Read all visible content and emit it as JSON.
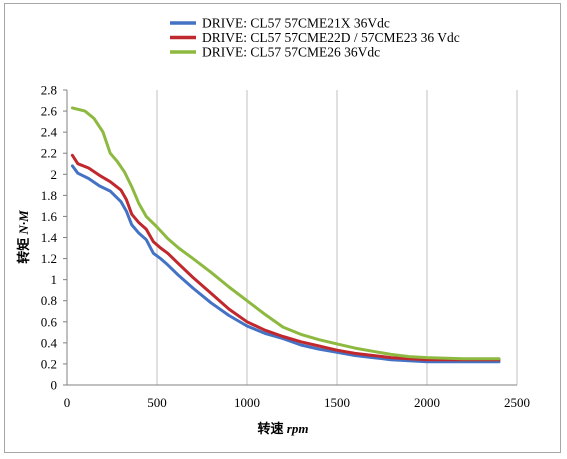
{
  "chart_data": {
    "type": "line",
    "xlabel": {
      "main": "转速",
      "unit": "rpm"
    },
    "ylabel": {
      "main": "转矩",
      "unit": "N·M"
    },
    "xlim": [
      0,
      2500
    ],
    "ylim": [
      0,
      2.8
    ],
    "xticks": [
      "0",
      "500",
      "1000",
      "1500",
      "2000",
      "2500"
    ],
    "yticks": [
      "0",
      "0.2",
      "0.4",
      "0.6",
      "0.8",
      "1",
      "1.2",
      "1.4",
      "1.6",
      "1.8",
      "2",
      "2.2",
      "2.4",
      "2.6",
      "2.8"
    ],
    "grid": "vertical",
    "legend": "top",
    "series": [
      {
        "name": "DRIVE: CL57 57CME21X 36Vdc",
        "color": "#4472c4",
        "points": [
          [
            30,
            2.08
          ],
          [
            60,
            2.01
          ],
          [
            120,
            1.96
          ],
          [
            180,
            1.89
          ],
          [
            240,
            1.84
          ],
          [
            300,
            1.74
          ],
          [
            330,
            1.65
          ],
          [
            360,
            1.52
          ],
          [
            400,
            1.44
          ],
          [
            440,
            1.38
          ],
          [
            480,
            1.25
          ],
          [
            520,
            1.2
          ],
          [
            560,
            1.14
          ],
          [
            620,
            1.04
          ],
          [
            700,
            0.92
          ],
          [
            800,
            0.78
          ],
          [
            900,
            0.66
          ],
          [
            1000,
            0.56
          ],
          [
            1100,
            0.49
          ],
          [
            1200,
            0.44
          ],
          [
            1300,
            0.38
          ],
          [
            1400,
            0.34
          ],
          [
            1500,
            0.31
          ],
          [
            1600,
            0.28
          ],
          [
            1700,
            0.26
          ],
          [
            1800,
            0.24
          ],
          [
            1900,
            0.23
          ],
          [
            2000,
            0.22
          ],
          [
            2200,
            0.22
          ],
          [
            2400,
            0.22
          ]
        ]
      },
      {
        "name": "DRIVE: CL57 57CME22D / 57CME23 36 Vdc",
        "color": "#c0282d",
        "points": [
          [
            30,
            2.18
          ],
          [
            60,
            2.1
          ],
          [
            120,
            2.06
          ],
          [
            180,
            1.99
          ],
          [
            240,
            1.93
          ],
          [
            300,
            1.85
          ],
          [
            330,
            1.76
          ],
          [
            360,
            1.62
          ],
          [
            400,
            1.54
          ],
          [
            440,
            1.48
          ],
          [
            480,
            1.36
          ],
          [
            520,
            1.3
          ],
          [
            560,
            1.25
          ],
          [
            620,
            1.15
          ],
          [
            700,
            1.02
          ],
          [
            800,
            0.87
          ],
          [
            900,
            0.72
          ],
          [
            1000,
            0.6
          ],
          [
            1100,
            0.52
          ],
          [
            1200,
            0.46
          ],
          [
            1300,
            0.41
          ],
          [
            1400,
            0.37
          ],
          [
            1500,
            0.33
          ],
          [
            1600,
            0.3
          ],
          [
            1700,
            0.28
          ],
          [
            1800,
            0.26
          ],
          [
            1900,
            0.25
          ],
          [
            2000,
            0.24
          ],
          [
            2200,
            0.24
          ],
          [
            2400,
            0.24
          ]
        ]
      },
      {
        "name": "DRIVE: CL57 57CME26 36Vdc",
        "color": "#8db940",
        "points": [
          [
            30,
            2.63
          ],
          [
            100,
            2.6
          ],
          [
            150,
            2.53
          ],
          [
            200,
            2.4
          ],
          [
            240,
            2.2
          ],
          [
            280,
            2.12
          ],
          [
            320,
            2.02
          ],
          [
            360,
            1.88
          ],
          [
            400,
            1.72
          ],
          [
            440,
            1.6
          ],
          [
            500,
            1.5
          ],
          [
            560,
            1.39
          ],
          [
            620,
            1.3
          ],
          [
            700,
            1.2
          ],
          [
            800,
            1.07
          ],
          [
            900,
            0.93
          ],
          [
            1000,
            0.8
          ],
          [
            1100,
            0.67
          ],
          [
            1200,
            0.55
          ],
          [
            1300,
            0.48
          ],
          [
            1400,
            0.43
          ],
          [
            1500,
            0.39
          ],
          [
            1600,
            0.35
          ],
          [
            1700,
            0.32
          ],
          [
            1800,
            0.29
          ],
          [
            1900,
            0.27
          ],
          [
            2000,
            0.26
          ],
          [
            2200,
            0.25
          ],
          [
            2400,
            0.25
          ]
        ]
      }
    ]
  }
}
